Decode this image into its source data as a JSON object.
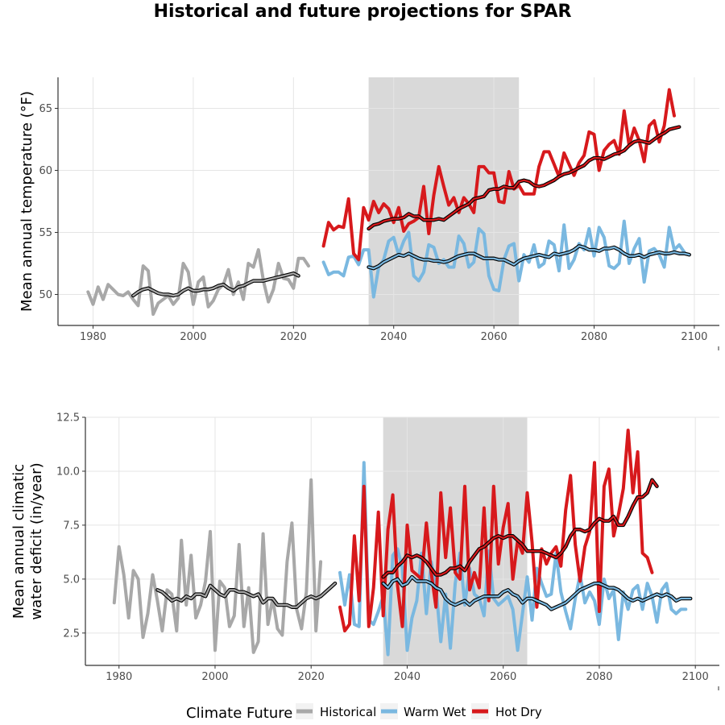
{
  "title": "Historical and future projections for SPAR",
  "colors": {
    "historical": "#a8a8a8",
    "warm_wet": "#7ab8e0",
    "hot_dry": "#d7191c",
    "smooth_outline": "#000000",
    "shade": "#d9d9d9",
    "grid": "#e5e5e5"
  },
  "legend": {
    "title": "Climate Future",
    "items": [
      {
        "label": "Historical",
        "series": "historical"
      },
      {
        "label": "Warm Wet",
        "series": "warm_wet"
      },
      {
        "label": "Hot Dry",
        "series": "hot_dry"
      }
    ],
    "position": "bottom"
  },
  "chart_data": [
    {
      "type": "line",
      "ylabel": "Mean annual temperature (°F)",
      "xlabel": "",
      "xlim": [
        1973,
        2105
      ],
      "ylim": [
        47.5,
        67.5
      ],
      "xticks": [
        1980,
        2000,
        2020,
        2040,
        2060,
        2080,
        2100
      ],
      "yticks": [
        50,
        55,
        60,
        65
      ],
      "grid": true,
      "shaded_period": [
        2035,
        2065
      ],
      "series": [
        {
          "name": "Historical",
          "key": "historical",
          "x_start": 1979,
          "values": [
            50.2,
            49.2,
            50.6,
            49.6,
            50.8,
            50.4,
            50.0,
            49.9,
            50.2,
            49.6,
            49.1,
            52.3,
            51.9,
            48.4,
            49.3,
            49.6,
            49.9,
            49.2,
            49.7,
            52.5,
            51.8,
            49.2,
            51.0,
            51.4,
            49.0,
            49.5,
            50.4,
            50.8,
            52.0,
            50.0,
            51.0,
            49.6,
            52.5,
            52.2,
            53.6,
            51.1,
            49.4,
            50.4,
            52.5,
            51.3,
            51.2,
            50.5,
            52.9,
            52.9,
            52.3
          ]
        },
        {
          "name": "Warm Wet",
          "key": "warm_wet",
          "x_start": 2026,
          "values": [
            52.6,
            51.6,
            51.8,
            51.8,
            51.5,
            53.0,
            53.1,
            52.4,
            53.6,
            53.6,
            49.8,
            52.2,
            52.8,
            54.3,
            54.6,
            53.2,
            54.3,
            55.0,
            51.5,
            51.1,
            51.8,
            54.0,
            53.8,
            52.5,
            52.8,
            52.2,
            52.2,
            54.7,
            54.1,
            52.2,
            52.6,
            55.3,
            54.9,
            51.5,
            50.4,
            50.3,
            52.8,
            53.9,
            54.1,
            51.1,
            53.2,
            52.6,
            54.0,
            52.2,
            52.5,
            54.3,
            54.0,
            51.9,
            55.6,
            52.1,
            52.8,
            54.1,
            53.6,
            55.3,
            53.1,
            55.4,
            54.6,
            52.3,
            52.1,
            52.5,
            55.9,
            52.5,
            53.7,
            54.5,
            51.0,
            53.5,
            53.7,
            53.2,
            52.2,
            55.4,
            53.6,
            54.0,
            53.4
          ]
        },
        {
          "name": "Hot Dry",
          "key": "hot_dry",
          "x_start": 2026,
          "values": [
            53.9,
            55.8,
            55.2,
            55.5,
            55.4,
            57.7,
            53.3,
            52.8,
            57.0,
            56.0,
            57.5,
            56.6,
            57.3,
            56.9,
            55.8,
            57.0,
            55.1,
            55.7,
            55.9,
            56.2,
            58.7,
            54.9,
            58.0,
            60.3,
            58.7,
            57.2,
            57.8,
            56.6,
            57.8,
            57.3,
            56.6,
            60.3,
            60.3,
            59.8,
            59.8,
            57.5,
            57.4,
            59.9,
            58.5,
            58.8,
            58.1,
            58.1,
            58.1,
            60.3,
            61.5,
            61.5,
            60.5,
            59.5,
            61.4,
            60.5,
            59.6,
            60.6,
            61.2,
            63.1,
            62.9,
            60.0,
            61.6,
            62.1,
            62.4,
            61.3,
            64.8,
            62.0,
            63.4,
            62.4,
            60.7,
            63.6,
            64.0,
            62.3,
            63.6,
            66.5,
            64.4
          ]
        },
        {
          "name": "Warm Wet smoothed",
          "key": "warm_wet_smooth",
          "x_start": 2035,
          "values": [
            52.2,
            52.1,
            52.3,
            52.6,
            52.8,
            53.0,
            53.2,
            53.1,
            53.3,
            53.1,
            52.9,
            52.8,
            52.8,
            52.7,
            52.7,
            52.6,
            52.7,
            52.9,
            53.1,
            53.2,
            53.3,
            53.3,
            53.1,
            52.9,
            52.9,
            52.9,
            52.8,
            52.8,
            52.6,
            52.4,
            52.7,
            52.9,
            53.0,
            53.1,
            53.2,
            53.1,
            53.0,
            53.3,
            53.2,
            53.3,
            53.4,
            53.6,
            53.9,
            53.8,
            53.6,
            53.6,
            53.5,
            53.7,
            53.7,
            53.8,
            53.6,
            53.3,
            53.1,
            53.1,
            53.2,
            53.0,
            53.2,
            53.3,
            53.4,
            53.3,
            53.3,
            53.4,
            53.3,
            53.3,
            53.2
          ]
        },
        {
          "name": "Hot Dry smoothed",
          "key": "hot_dry_smooth",
          "x_start": 2035,
          "values": [
            55.3,
            55.6,
            55.7,
            55.9,
            56.0,
            56.1,
            56.1,
            56.2,
            56.5,
            56.3,
            56.3,
            56.0,
            56.0,
            56.0,
            56.1,
            56.0,
            56.3,
            56.6,
            56.9,
            57.1,
            57.3,
            57.7,
            57.8,
            57.9,
            58.4,
            58.5,
            58.5,
            58.7,
            58.6,
            58.6,
            59.1,
            59.2,
            59.1,
            58.8,
            58.7,
            58.8,
            59.0,
            59.2,
            59.5,
            59.7,
            59.8,
            60.0,
            60.2,
            60.4,
            60.8,
            61.0,
            61.0,
            60.9,
            61.1,
            61.3,
            61.4,
            61.6,
            62.0,
            62.3,
            62.4,
            62.3,
            62.2,
            62.5,
            62.8,
            63.0,
            63.3,
            63.4,
            63.5
          ]
        },
        {
          "name": "Historical smoothed",
          "key": "historical_smooth",
          "x_start": 1988,
          "values": [
            49.9,
            50.2,
            50.4,
            50.5,
            50.3,
            50.1,
            50.0,
            50.0,
            49.9,
            50.0,
            50.3,
            50.5,
            50.3,
            50.3,
            50.4,
            50.4,
            50.5,
            50.7,
            50.8,
            50.5,
            50.3,
            50.6,
            50.7,
            50.9,
            51.1,
            51.1,
            51.1,
            51.2,
            51.3,
            51.4,
            51.5,
            51.6,
            51.7,
            51.5
          ]
        }
      ]
    },
    {
      "type": "line",
      "ylabel": "Mean annual climatic water deficit (in/year)",
      "ylabel_lines": [
        "Mean annual climatic",
        "water deficit (in/year)"
      ],
      "xlabel": "",
      "xlim": [
        1973,
        2105
      ],
      "ylim": [
        1.0,
        12.5
      ],
      "xticks": [
        1980,
        2000,
        2020,
        2040,
        2060,
        2080,
        2100
      ],
      "yticks": [
        2.5,
        5.0,
        7.5,
        10.0,
        12.5
      ],
      "ytick_labels": [
        "2.5",
        "5.0",
        "7.5",
        "10.0",
        "12.5"
      ],
      "grid": true,
      "shaded_period": [
        2035,
        2065
      ],
      "series": [
        {
          "name": "Historical",
          "key": "historical",
          "x_start": 1979,
          "values": [
            3.9,
            6.5,
            5.2,
            3.2,
            5.4,
            5.0,
            2.3,
            3.4,
            5.2,
            4.0,
            2.6,
            4.5,
            4.3,
            2.6,
            6.8,
            3.8,
            6.1,
            3.2,
            3.8,
            4.9,
            7.2,
            1.7,
            4.9,
            4.6,
            2.8,
            3.3,
            6.6,
            2.8,
            4.6,
            1.6,
            2.1,
            7.1,
            2.9,
            4.1,
            2.7,
            2.4,
            5.8,
            7.6,
            3.6,
            2.7,
            4.4,
            9.6,
            2.6,
            5.8
          ]
        },
        {
          "name": "Warm Wet",
          "key": "warm_wet",
          "x_start": 2026,
          "values": [
            5.3,
            3.8,
            5.2,
            2.9,
            2.8,
            10.4,
            3.1,
            2.9,
            3.5,
            4.2,
            1.5,
            6.1,
            6.4,
            5.5,
            1.7,
            3.2,
            4.0,
            6.2,
            3.4,
            5.8,
            4.6,
            2.1,
            4.3,
            1.8,
            4.8,
            6.2,
            3.8,
            5.5,
            4.3,
            4.1,
            3.3,
            6.3,
            4.1,
            3.8,
            4.0,
            4.2,
            3.6,
            1.7,
            3.4,
            5.1,
            3.1,
            5.5,
            4.8,
            4.2,
            4.3,
            6.2,
            4.4,
            3.5,
            2.7,
            4.1,
            5.2,
            3.9,
            4.4,
            4.0,
            2.9,
            5.0,
            4.1,
            4.5,
            2.2,
            4.4,
            3.6,
            4.5,
            4.7,
            3.6,
            4.8,
            4.2,
            3.0,
            4.5,
            4.8,
            3.6,
            3.4,
            3.6,
            3.6
          ]
        },
        {
          "name": "Hot Dry",
          "key": "hot_dry",
          "x_start": 2026,
          "values": [
            3.7,
            2.6,
            2.9,
            7.0,
            4.0,
            9.3,
            2.8,
            4.6,
            8.1,
            3.3,
            7.3,
            8.9,
            4.7,
            2.8,
            7.5,
            5.4,
            5.2,
            5.0,
            7.6,
            5.3,
            3.7,
            9.0,
            6.0,
            8.3,
            5.3,
            5.0,
            9.3,
            4.5,
            5.3,
            4.6,
            8.3,
            4.0,
            9.3,
            5.7,
            7.4,
            8.5,
            5.0,
            6.8,
            6.2,
            9.0,
            6.7,
            3.7,
            6.4,
            5.7,
            6.2,
            6.5,
            5.6,
            8.2,
            9.8,
            6.6,
            4.9,
            6.5,
            7.2,
            10.4,
            3.5,
            9.3,
            10.1,
            7.0,
            8.0,
            9.2,
            11.9,
            9.0,
            10.9,
            6.2,
            6.0,
            5.3
          ]
        },
        {
          "name": "Warm Wet smoothed",
          "key": "warm_wet_smooth",
          "x_start": 2035,
          "values": [
            4.8,
            4.6,
            4.9,
            5.0,
            4.7,
            4.8,
            5.1,
            4.9,
            4.9,
            4.9,
            4.8,
            4.6,
            4.5,
            4.1,
            3.9,
            3.8,
            3.9,
            4.0,
            3.8,
            4.0,
            4.1,
            4.2,
            4.2,
            4.2,
            4.2,
            4.4,
            4.5,
            4.3,
            4.2,
            3.9,
            4.1,
            4.1,
            4.0,
            3.9,
            3.8,
            3.6,
            3.7,
            3.8,
            3.9,
            4.1,
            4.3,
            4.5,
            4.6,
            4.7,
            4.8,
            4.8,
            4.7,
            4.6,
            4.6,
            4.5,
            4.3,
            4.1,
            4.0,
            4.1,
            4.0,
            4.1,
            4.2,
            4.3,
            4.2,
            4.3,
            4.2,
            4.0,
            4.1,
            4.1,
            4.1
          ]
        },
        {
          "name": "Hot Dry smoothed",
          "key": "hot_dry_smooth",
          "x_start": 2035,
          "values": [
            5.1,
            5.3,
            5.3,
            5.6,
            5.8,
            6.1,
            6.0,
            6.1,
            6.0,
            5.8,
            5.5,
            5.2,
            5.2,
            5.3,
            5.5,
            5.5,
            5.6,
            5.4,
            5.8,
            6.1,
            6.4,
            6.5,
            6.7,
            6.9,
            7.0,
            6.9,
            7.0,
            7.0,
            6.8,
            6.6,
            6.3,
            6.3,
            6.3,
            6.3,
            6.2,
            6.1,
            6.0,
            6.2,
            6.5,
            7.0,
            7.3,
            7.3,
            7.2,
            7.3,
            7.6,
            7.8,
            7.7,
            7.7,
            7.9,
            7.5,
            7.5,
            7.9,
            8.4,
            8.8,
            8.8,
            9.0,
            9.6,
            9.3
          ]
        },
        {
          "name": "Historical smoothed",
          "key": "historical_smooth",
          "x_start": 1988,
          "values": [
            4.5,
            4.4,
            4.2,
            4.0,
            4.1,
            4.0,
            4.2,
            4.1,
            4.3,
            4.3,
            4.2,
            4.7,
            4.5,
            4.3,
            4.2,
            4.5,
            4.5,
            4.4,
            4.4,
            4.3,
            4.2,
            4.3,
            3.9,
            4.1,
            4.1,
            3.8,
            3.8,
            3.8,
            3.7,
            3.7,
            3.9,
            4.1,
            4.2,
            4.1,
            4.2,
            4.4,
            4.6,
            4.8
          ]
        }
      ]
    }
  ]
}
